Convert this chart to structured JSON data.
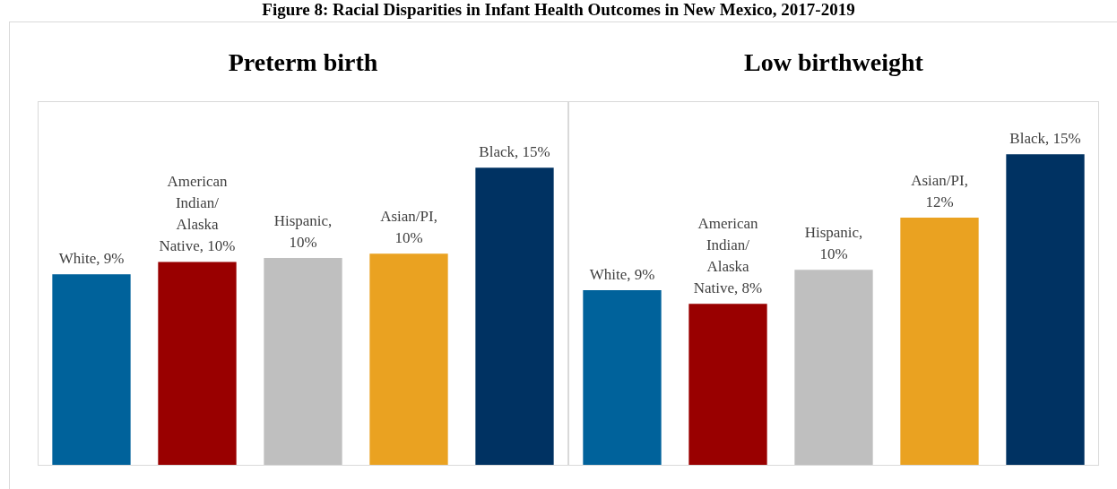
{
  "chart_data": [
    {
      "type": "bar",
      "title": "Preterm birth",
      "annotations": [
        "Figure 8: Racial Disparities in Infant Health Outcomes in New Mexico, 2017-2019"
      ],
      "categories": [
        null,
        null,
        null,
        null,
        null
      ],
      "values": [
        9.3,
        9.9,
        10.1,
        10.3,
        14.5
      ],
      "value_labels": [
        "White, 9%",
        "American Indian/ Alaska Native, 10%",
        "Hispanic, 10%",
        "Asian/PI, 10%",
        "Black, 15%"
      ],
      "colors": [
        "#00629b",
        "#990000",
        "#bfbfbf",
        "#eaa221",
        "#003262"
      ],
      "ylim": [
        0,
        17.7
      ],
      "tick_labels": false,
      "grid": false,
      "legend": false
    },
    {
      "type": "bar",
      "title": "Low birthweight",
      "categories": [
        null,
        null,
        null,
        null,
        null
      ],
      "values": [
        9.0,
        8.4,
        9.9,
        12.2,
        15.0
      ],
      "value_labels": [
        "White, 9%",
        "American Indian/ Alaska Native, 8%",
        "Hispanic, 10%",
        "Asian/PI, 12%",
        "Black, 15%"
      ],
      "colors": [
        "#00629b",
        "#990000",
        "#bfbfbf",
        "#eaa221",
        "#003262"
      ],
      "ylim": [
        1.3,
        17.3
      ],
      "tick_labels": false,
      "grid": false,
      "legend": false
    }
  ]
}
